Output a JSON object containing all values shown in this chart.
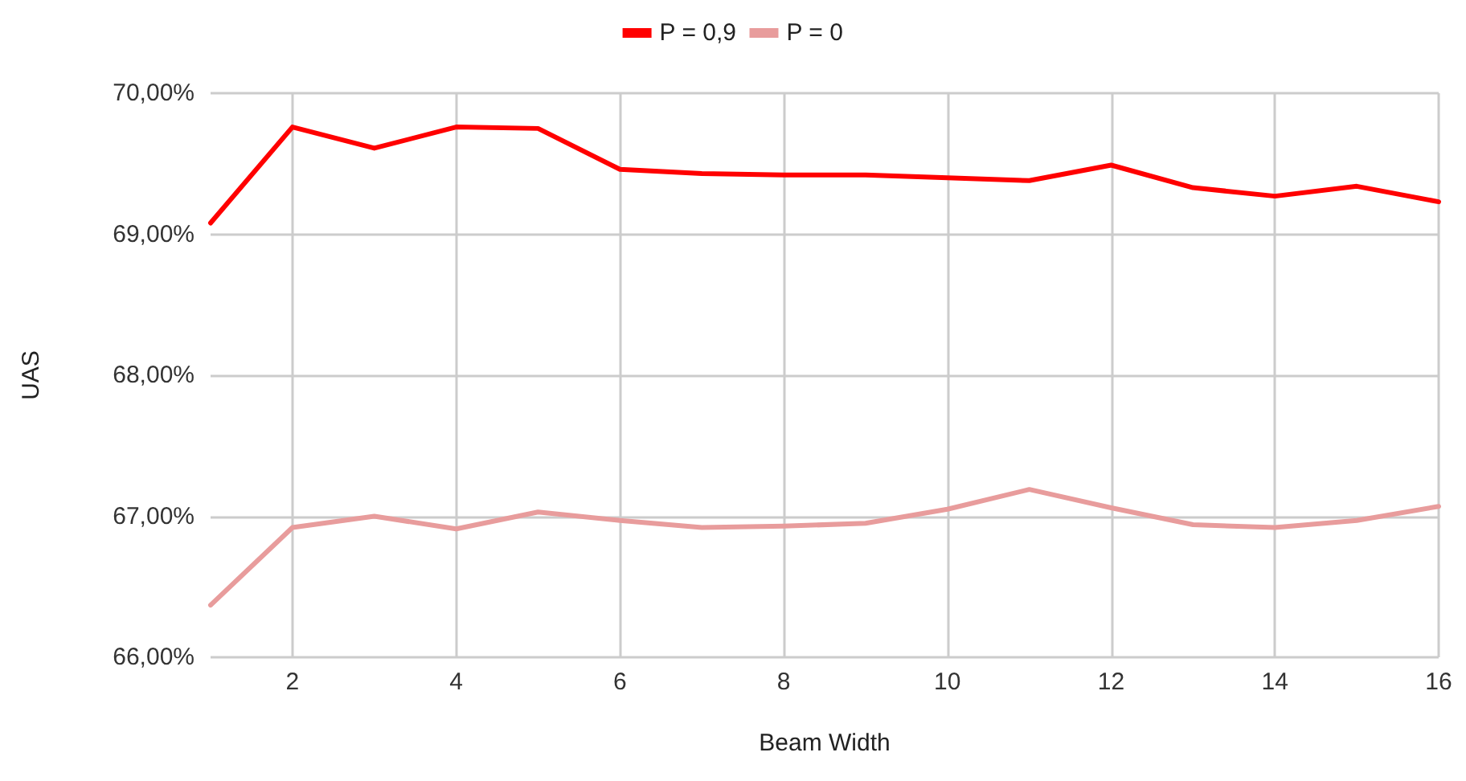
{
  "chart_data": {
    "type": "line",
    "xlabel": "Beam Width",
    "ylabel": "UAS",
    "x": [
      1,
      2,
      3,
      4,
      5,
      6,
      7,
      8,
      9,
      10,
      11,
      12,
      13,
      14,
      15,
      16
    ],
    "series": [
      {
        "name": "P = 0,9",
        "color": "#ff0000",
        "values": [
          69.08,
          69.76,
          69.61,
          69.76,
          69.75,
          69.46,
          69.43,
          69.42,
          69.42,
          69.4,
          69.38,
          69.49,
          69.33,
          69.27,
          69.34,
          69.23
        ]
      },
      {
        "name": "P = 0",
        "color": "#e89c9c",
        "values": [
          66.37,
          66.92,
          67.0,
          66.91,
          67.03,
          66.97,
          66.92,
          66.93,
          66.95,
          67.05,
          67.19,
          67.06,
          66.94,
          66.92,
          66.97,
          67.07
        ]
      }
    ],
    "xlim": [
      1,
      16
    ],
    "xticks": [
      2,
      4,
      6,
      8,
      10,
      12,
      14,
      16
    ],
    "ylim": [
      66,
      70
    ],
    "yticks": [
      {
        "value": 66,
        "label": "66,00%"
      },
      {
        "value": 67,
        "label": "67,00%"
      },
      {
        "value": 68,
        "label": "68,00%"
      },
      {
        "value": 69,
        "label": "69,00%"
      },
      {
        "value": 70,
        "label": "70,00%"
      }
    ],
    "grid": true,
    "legend": "top",
    "marker": "none",
    "line_style": "solid"
  }
}
